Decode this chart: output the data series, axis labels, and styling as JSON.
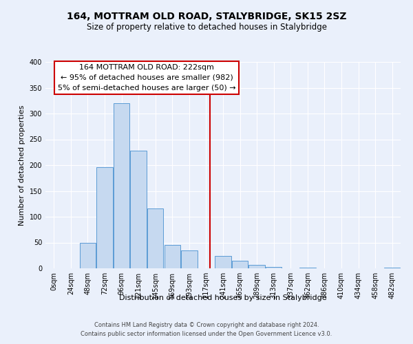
{
  "title": "164, MOTTRAM OLD ROAD, STALYBRIDGE, SK15 2SZ",
  "subtitle": "Size of property relative to detached houses in Stalybridge",
  "xlabel": "Distribution of detached houses by size in Stalybridge",
  "ylabel": "Number of detached properties",
  "bar_labels": [
    "0sqm",
    "24sqm",
    "48sqm",
    "72sqm",
    "96sqm",
    "121sqm",
    "145sqm",
    "169sqm",
    "193sqm",
    "217sqm",
    "241sqm",
    "265sqm",
    "289sqm",
    "313sqm",
    "337sqm",
    "362sqm",
    "386sqm",
    "410sqm",
    "434sqm",
    "458sqm",
    "482sqm"
  ],
  "bar_values": [
    0,
    0,
    50,
    196,
    320,
    228,
    116,
    45,
    35,
    0,
    24,
    15,
    7,
    3,
    0,
    1,
    0,
    0,
    0,
    0,
    2
  ],
  "bar_color": "#c6d9f0",
  "bar_edge_color": "#5b9bd5",
  "vline_color": "#cc0000",
  "ylim": [
    0,
    400
  ],
  "yticks": [
    0,
    50,
    100,
    150,
    200,
    250,
    300,
    350,
    400
  ],
  "annotation_title": "164 MOTTRAM OLD ROAD: 222sqm",
  "annotation_line1": "← 95% of detached houses are smaller (982)",
  "annotation_line2": "5% of semi-detached houses are larger (50) →",
  "annotation_box_color": "#ffffff",
  "annotation_box_edge": "#cc0000",
  "footer_line1": "Contains HM Land Registry data © Crown copyright and database right 2024.",
  "footer_line2": "Contains public sector information licensed under the Open Government Licence v3.0.",
  "bg_color": "#eaf0fb",
  "plot_bg_color": "#eaf0fb",
  "grid_color": "#ffffff",
  "title_fontsize": 10,
  "subtitle_fontsize": 8.5,
  "axis_label_fontsize": 8,
  "tick_fontsize": 7,
  "annotation_fontsize": 8,
  "footer_fontsize": 6
}
